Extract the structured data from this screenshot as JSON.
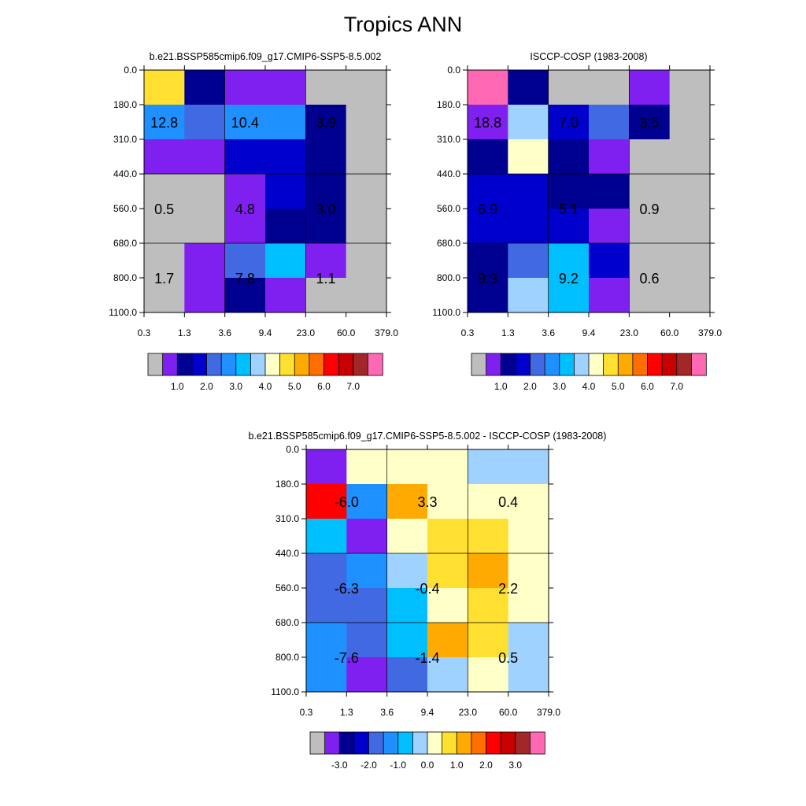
{
  "title": "Tropics ANN",
  "chart_data": [
    {
      "type": "heatmap",
      "title": "b.e21.BSSP585cmip6.f09_g17.CMIP6-SSP5-8.5.002",
      "x_ticks": [
        "0.3",
        "1.3",
        "3.6",
        "9.4",
        "23.0",
        "60.0",
        "379.0"
      ],
      "y_ticks": [
        "0.0",
        "180.0",
        "310.0",
        "440.0",
        "560.0",
        "680.0",
        "800.0",
        "1100.0"
      ],
      "cells": [
        [
          "#FFE030",
          "#000090",
          "#8020F0",
          "#8020F0",
          "#BEBEBE",
          "#BEBEBE"
        ],
        [
          "#1E90FF",
          "#4169E1",
          "#1E90FF",
          "#1E90FF",
          "#000090",
          "#BEBEBE"
        ],
        [
          "#8020F0",
          "#8020F0",
          "#0000CD",
          "#0000CD",
          "#000090",
          "#BEBEBE"
        ],
        [
          "#BEBEBE",
          "#BEBEBE",
          "#8020F0",
          "#0000CD",
          "#000090",
          "#BEBEBE"
        ],
        [
          "#BEBEBE",
          "#BEBEBE",
          "#8020F0",
          "#000090",
          "#000090",
          "#BEBEBE"
        ],
        [
          "#BEBEBE",
          "#8020F0",
          "#4169E1",
          "#00BFFF",
          "#8020F0",
          "#BEBEBE"
        ],
        [
          "#BEBEBE",
          "#8020F0",
          "#000090",
          "#8020F0",
          "#BEBEBE",
          "#BEBEBE"
        ]
      ],
      "annotations": [
        {
          "text": "12.8",
          "col": 0.5,
          "row": 1.5
        },
        {
          "text": "10.4",
          "col": 2.5,
          "row": 1.5
        },
        {
          "text": "3.9",
          "col": 4.5,
          "row": 1.5
        },
        {
          "text": "0.5",
          "col": 0.5,
          "row": 4.0
        },
        {
          "text": "4.8",
          "col": 2.5,
          "row": 4.0
        },
        {
          "text": "3.0",
          "col": 4.5,
          "row": 4.0
        },
        {
          "text": "1.7",
          "col": 0.5,
          "row": 6.0
        },
        {
          "text": "7.8",
          "col": 2.5,
          "row": 6.0
        },
        {
          "text": "1.1",
          "col": 4.5,
          "row": 6.0
        }
      ],
      "colorbar": {
        "colors": [
          "#BEBEBE",
          "#8020F0",
          "#000090",
          "#0000CD",
          "#4169E1",
          "#1E90FF",
          "#00BFFF",
          "#A0D2FF",
          "#FFFFC8",
          "#FFE030",
          "#FFAA00",
          "#FF6E00",
          "#FF0000",
          "#C80000",
          "#A02828",
          "#FF69B4"
        ],
        "labels": [
          "1.0",
          "2.0",
          "3.0",
          "4.0",
          "5.0",
          "6.0",
          "7.0"
        ],
        "label_boundary_start": 2,
        "label_step": 2
      }
    },
    {
      "type": "heatmap",
      "title": "ISCCP-COSP (1983-2008)",
      "x_ticks": [
        "0.3",
        "1.3",
        "3.6",
        "9.4",
        "23.0",
        "60.0",
        "379.0"
      ],
      "y_ticks": [
        "0.0",
        "180.0",
        "310.0",
        "440.0",
        "560.0",
        "680.0",
        "800.0",
        "1100.0"
      ],
      "cells": [
        [
          "#FF69B4",
          "#000090",
          "#BEBEBE",
          "#BEBEBE",
          "#8020F0",
          "#BEBEBE"
        ],
        [
          "#8020F0",
          "#A0D2FF",
          "#0000CD",
          "#4169E1",
          "#000090",
          "#BEBEBE"
        ],
        [
          "#000090",
          "#FFFFC8",
          "#000090",
          "#8020F0",
          "#BEBEBE",
          "#BEBEBE"
        ],
        [
          "#0000CD",
          "#0000CD",
          "#000090",
          "#000090",
          "#BEBEBE",
          "#BEBEBE"
        ],
        [
          "#0000CD",
          "#0000CD",
          "#0000CD",
          "#8020F0",
          "#BEBEBE",
          "#BEBEBE"
        ],
        [
          "#000090",
          "#4169E1",
          "#00BFFF",
          "#0000CD",
          "#BEBEBE",
          "#BEBEBE"
        ],
        [
          "#000090",
          "#A0D2FF",
          "#00BFFF",
          "#8020F0",
          "#BEBEBE",
          "#BEBEBE"
        ]
      ],
      "annotations": [
        {
          "text": "18.8",
          "col": 0.5,
          "row": 1.5
        },
        {
          "text": "7.0",
          "col": 2.5,
          "row": 1.5
        },
        {
          "text": "3.5",
          "col": 4.5,
          "row": 1.5
        },
        {
          "text": "6.9",
          "col": 0.5,
          "row": 4.0
        },
        {
          "text": "5.1",
          "col": 2.5,
          "row": 4.0
        },
        {
          "text": "0.9",
          "col": 4.5,
          "row": 4.0
        },
        {
          "text": "9.3",
          "col": 0.5,
          "row": 6.0
        },
        {
          "text": "9.2",
          "col": 2.5,
          "row": 6.0
        },
        {
          "text": "0.6",
          "col": 4.5,
          "row": 6.0
        }
      ],
      "colorbar": {
        "colors": [
          "#BEBEBE",
          "#8020F0",
          "#000090",
          "#0000CD",
          "#4169E1",
          "#1E90FF",
          "#00BFFF",
          "#A0D2FF",
          "#FFFFC8",
          "#FFE030",
          "#FFAA00",
          "#FF6E00",
          "#FF0000",
          "#C80000",
          "#A02828",
          "#FF69B4"
        ],
        "labels": [
          "1.0",
          "2.0",
          "3.0",
          "4.0",
          "5.0",
          "6.0",
          "7.0"
        ],
        "label_boundary_start": 2,
        "label_step": 2
      }
    },
    {
      "type": "heatmap",
      "title": "b.e21.BSSP585cmip6.f09_g17.CMIP6-SSP5-8.5.002 - ISCCP-COSP (1983-2008)",
      "x_ticks": [
        "0.3",
        "1.3",
        "3.6",
        "9.4",
        "23.0",
        "60.0",
        "379.0"
      ],
      "y_ticks": [
        "0.0",
        "180.0",
        "310.0",
        "440.0",
        "560.0",
        "680.0",
        "800.0",
        "1100.0"
      ],
      "cells": [
        [
          "#8020F0",
          "#FFFFC8",
          "#FFFFC8",
          "#FFFFC8",
          "#A0D2FF",
          "#A0D2FF"
        ],
        [
          "#FF0000",
          "#1E90FF",
          "#FFAA00",
          "#FFFFC8",
          "#FFFFC8",
          "#FFFFC8"
        ],
        [
          "#00BFFF",
          "#8020F0",
          "#FFFFC8",
          "#FFE030",
          "#FFE030",
          "#FFFFC8"
        ],
        [
          "#4169E1",
          "#1E90FF",
          "#A0D2FF",
          "#FFE030",
          "#FFAA00",
          "#FFFFC8"
        ],
        [
          "#4169E1",
          "#4169E1",
          "#00BFFF",
          "#FFFFC8",
          "#FFE030",
          "#FFFFC8"
        ],
        [
          "#1E90FF",
          "#4169E1",
          "#00BFFF",
          "#FFAA00",
          "#FFE030",
          "#A0D2FF"
        ],
        [
          "#1E90FF",
          "#8020F0",
          "#4169E1",
          "#A0D2FF",
          "#FFFFC8",
          "#A0D2FF"
        ]
      ],
      "annotations": [
        {
          "text": "-6.0",
          "col": 1.0,
          "row": 1.5
        },
        {
          "text": "3.3",
          "col": 3.0,
          "row": 1.5
        },
        {
          "text": "0.4",
          "col": 5.0,
          "row": 1.5
        },
        {
          "text": "-6.3",
          "col": 1.0,
          "row": 4.0
        },
        {
          "text": "-0.4",
          "col": 3.0,
          "row": 4.0
        },
        {
          "text": "2.2",
          "col": 5.0,
          "row": 4.0
        },
        {
          "text": "-7.6",
          "col": 1.0,
          "row": 6.0
        },
        {
          "text": "-1.4",
          "col": 3.0,
          "row": 6.0
        },
        {
          "text": "0.5",
          "col": 5.0,
          "row": 6.0
        }
      ],
      "colorbar": {
        "colors": [
          "#BEBEBE",
          "#8020F0",
          "#000090",
          "#0000CD",
          "#4169E1",
          "#1E90FF",
          "#00BFFF",
          "#A0D2FF",
          "#FFFFC8",
          "#FFE030",
          "#FFAA00",
          "#FF6E00",
          "#FF0000",
          "#C80000",
          "#A02828",
          "#FF69B4"
        ],
        "labels": [
          "-3.0",
          "-2.0",
          "-1.0",
          "0.0",
          "1.0",
          "2.0",
          "3.0"
        ],
        "label_boundary_start": 2,
        "label_step": 2
      }
    }
  ]
}
